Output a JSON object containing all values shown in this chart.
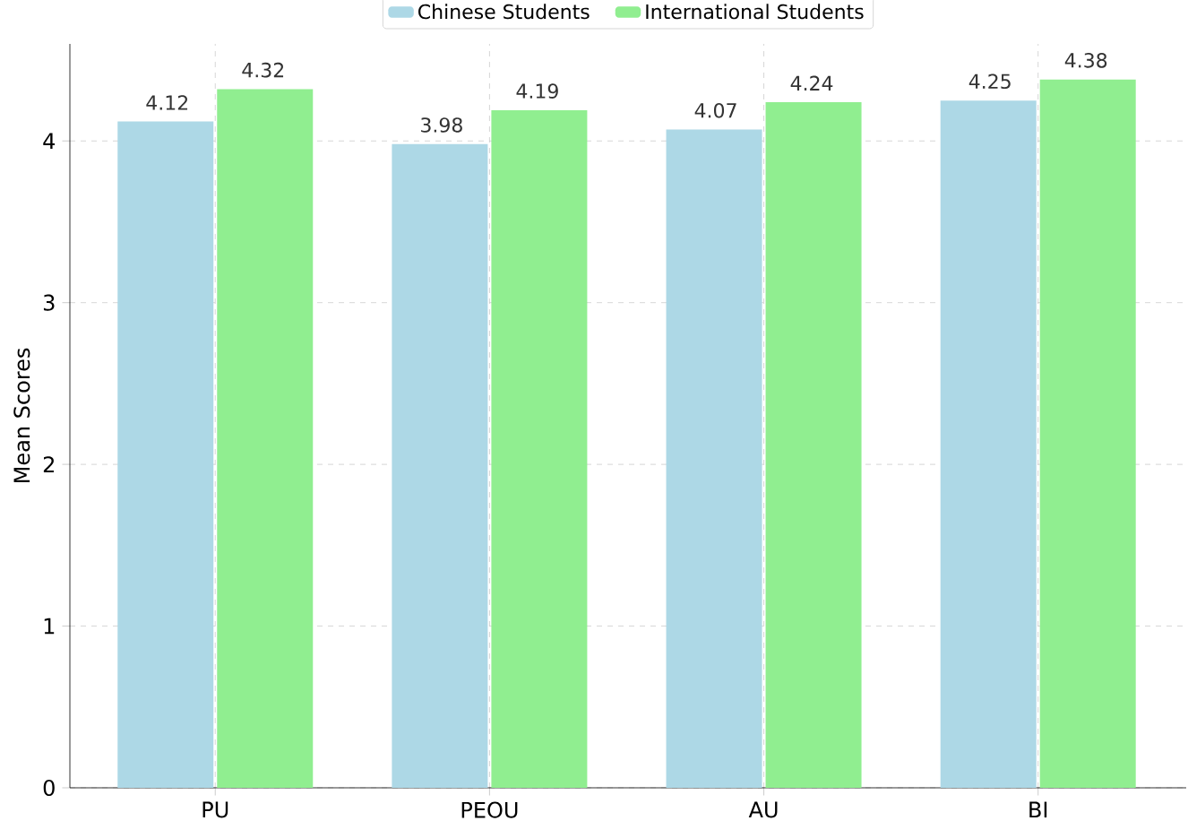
{
  "chart_data": {
    "type": "bar",
    "ylabel": "Mean Scores",
    "categories": [
      "PU",
      "PEOU",
      "AU",
      "BI"
    ],
    "series": [
      {
        "name": "Chinese Students",
        "color": "#add8e6",
        "values": [
          4.12,
          3.98,
          4.07,
          4.25
        ]
      },
      {
        "name": "International Students",
        "color": "#90ee90",
        "values": [
          4.32,
          4.19,
          4.24,
          4.38
        ]
      }
    ],
    "ylim": [
      0,
      4.6
    ],
    "yticks": [
      0,
      1,
      2,
      3,
      4
    ],
    "grid": true,
    "legend": "top",
    "data_labels": true
  }
}
